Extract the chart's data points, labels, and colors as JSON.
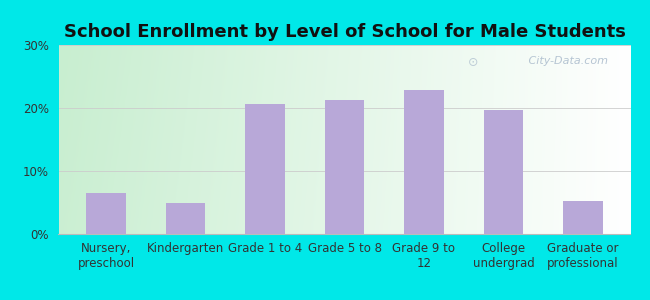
{
  "title": "School Enrollment by Level of School for Male Students",
  "categories": [
    "Nursery,\npreschool",
    "Kindergarten",
    "Grade 1 to 4",
    "Grade 5 to 8",
    "Grade 9 to\n12",
    "College\nundergrad",
    "Graduate or\nprofessional"
  ],
  "values": [
    6.5,
    5.0,
    20.7,
    21.3,
    22.8,
    19.7,
    5.3
  ],
  "bar_color": "#b8a8d8",
  "ylim": [
    0,
    30
  ],
  "yticks": [
    0,
    10,
    20,
    30
  ],
  "ytick_labels": [
    "0%",
    "10%",
    "20%",
    "30%"
  ],
  "background_outer": "#00e8e8",
  "title_fontsize": 13,
  "tick_fontsize": 8.5,
  "watermark": " City-Data.com",
  "grid_color": "#cccccc",
  "bar_width": 0.5
}
